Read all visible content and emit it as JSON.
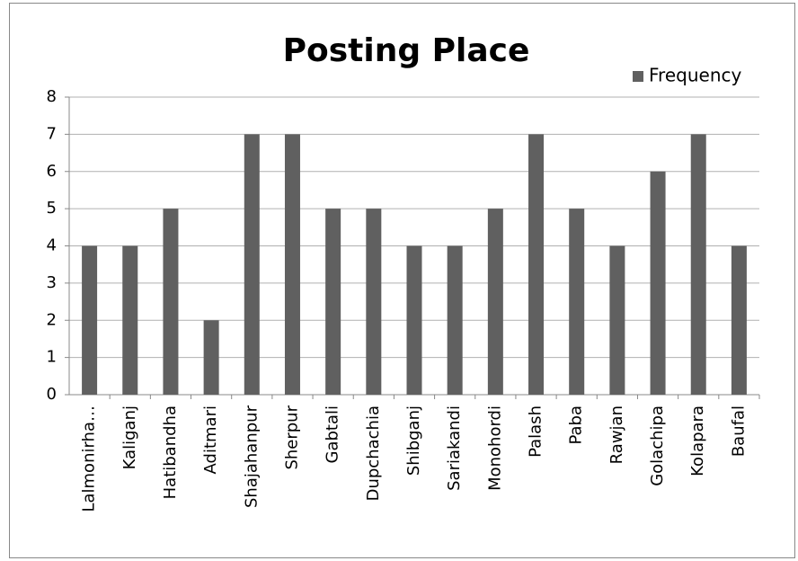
{
  "chart_data": {
    "type": "bar",
    "title": "Posting Place",
    "categories": [
      "Lalmonirha…",
      "Kaliganj",
      "Hatibandha",
      "Aditmari",
      "Shajahanpur",
      "Sherpur",
      "Gabtali",
      "Dupchachia",
      "Shibganj",
      "Sariakandi",
      "Monohordi",
      "Palash",
      "Paba",
      "Rawjan",
      "Golachipa",
      "Kolapara",
      "Baufal"
    ],
    "series": [
      {
        "name": "Frequency",
        "color": "#606060",
        "values": [
          4,
          4,
          5,
          2,
          7,
          7,
          5,
          5,
          4,
          4,
          5,
          7,
          5,
          4,
          6,
          7,
          4
        ]
      }
    ],
    "ylim": [
      0,
      8
    ],
    "yticks": [
      0,
      1,
      2,
      3,
      4,
      5,
      6,
      7,
      8
    ],
    "grid": true,
    "legend": "top-right"
  }
}
